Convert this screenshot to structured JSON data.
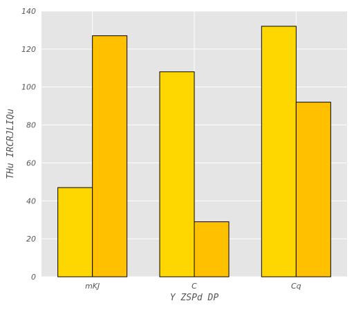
{
  "chart_data": {
    "type": "bar",
    "categories": [
      "mKJ",
      "C",
      "Cq"
    ],
    "series": [
      {
        "values": [
          47,
          108,
          132
        ],
        "color": "#FFD700"
      },
      {
        "values": [
          127,
          29,
          92
        ],
        "color": "#FFC000"
      }
    ],
    "xlabel": "Y ZSPd DP",
    "ylabel": "THu IRCRJLIQu",
    "ylim": [
      0,
      140
    ],
    "yticks": [
      0,
      20,
      40,
      60,
      80,
      100,
      120,
      140
    ],
    "grid": true,
    "plot_background": "#E5E5E5"
  }
}
